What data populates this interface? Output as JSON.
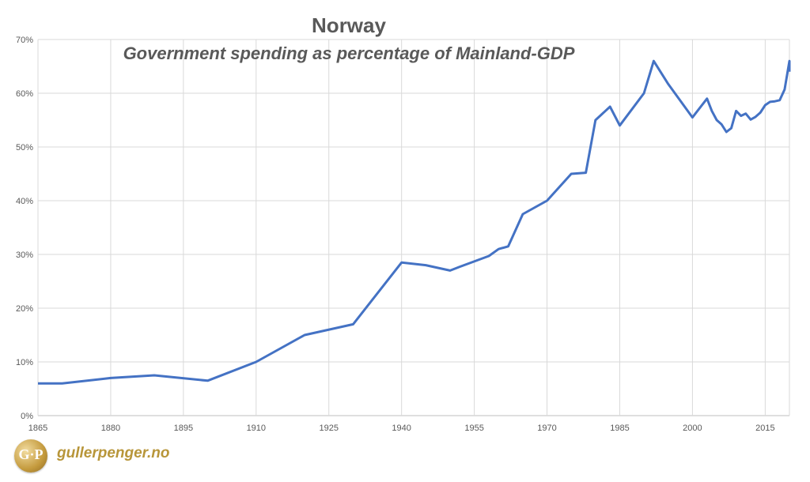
{
  "chart_data": {
    "type": "line",
    "title": "Norway",
    "subtitle": "Government spending as percentage of Mainland-GDP",
    "xlabel": "",
    "ylabel": "",
    "xlim": [
      1865,
      2020
    ],
    "ylim": [
      0,
      0.7
    ],
    "x_ticks": [
      "1865",
      "1880",
      "1895",
      "1910",
      "1925",
      "1940",
      "1955",
      "1970",
      "1985",
      "2000",
      "2015"
    ],
    "y_ticks": [
      "0%",
      "10%",
      "20%",
      "30%",
      "40%",
      "50%",
      "60%",
      "70%"
    ],
    "grid": true,
    "line_color": "#4472c4",
    "series": [
      {
        "x": [
          1865,
          1870,
          1880,
          1889,
          1900,
          1910,
          1920,
          1930,
          1940,
          1945,
          1950,
          1952,
          1958,
          1960,
          1962,
          1965,
          1970,
          1975,
          1978,
          1980,
          1983,
          1985,
          1990,
          1992,
          1995,
          2000,
          2003,
          2004,
          2005,
          2006,
          2007,
          2008,
          2009,
          2010,
          2011,
          2012,
          2013,
          2014,
          2015,
          2016,
          2017,
          2018,
          2019,
          2020,
          2021
        ],
        "y": [
          0.06,
          0.06,
          0.07,
          0.075,
          0.065,
          0.1,
          0.15,
          0.17,
          0.285,
          0.28,
          0.27,
          0.277,
          0.297,
          0.31,
          0.315,
          0.375,
          0.4,
          0.45,
          0.452,
          0.55,
          0.575,
          0.54,
          0.6,
          0.66,
          0.617,
          0.555,
          0.59,
          0.567,
          0.55,
          0.542,
          0.528,
          0.535,
          0.567,
          0.558,
          0.562,
          0.551,
          0.556,
          0.564,
          0.578,
          0.584,
          0.585,
          0.587,
          0.607,
          0.66,
          0.64
        ]
      }
    ]
  },
  "logo": {
    "badge_text": "G·P",
    "site_name": "gullerpenger.no"
  }
}
